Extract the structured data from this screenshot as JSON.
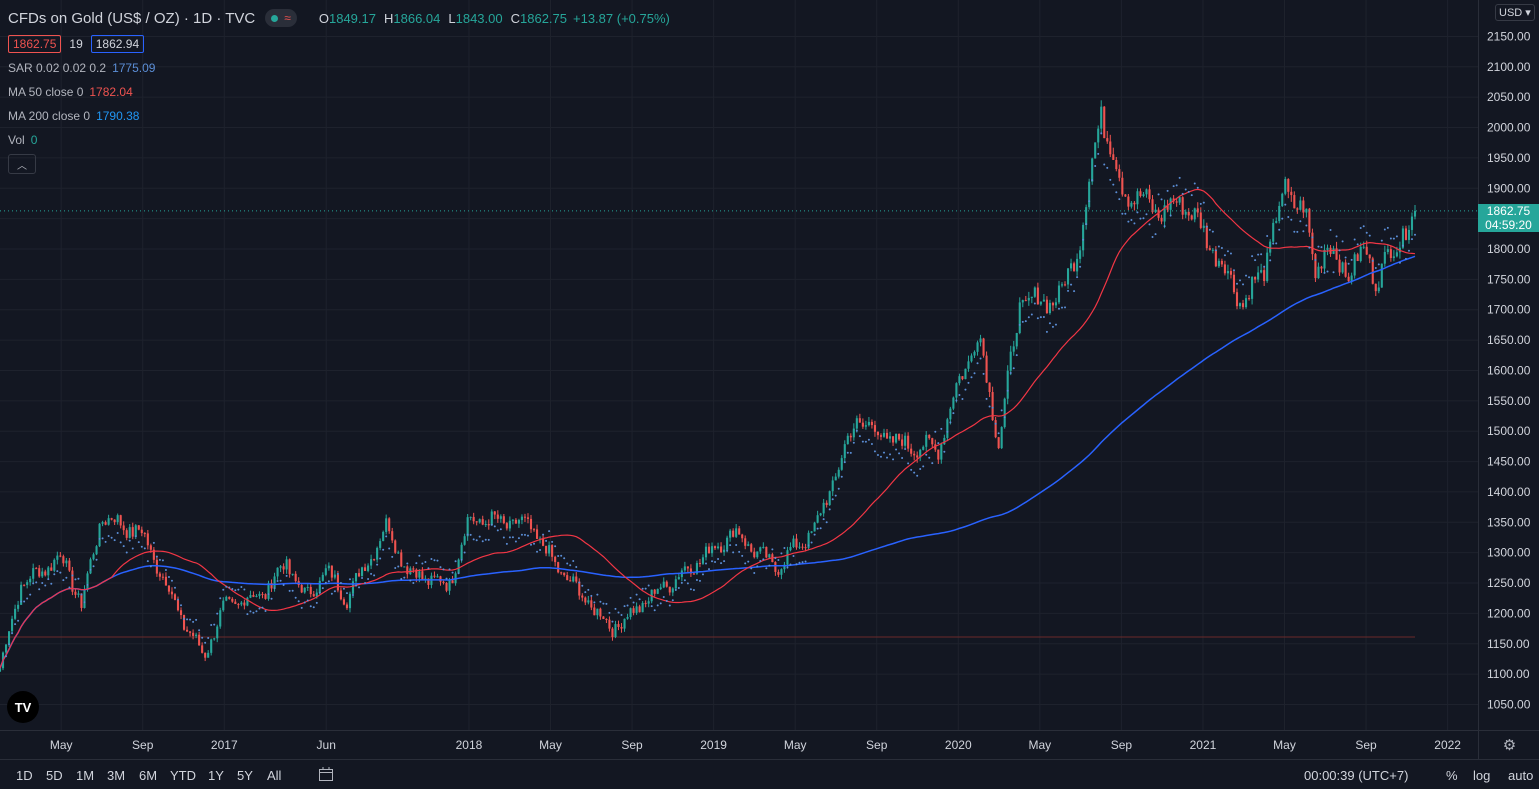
{
  "header": {
    "title": "CFDs on Gold (US$ / OZ) · 1D · TVC",
    "ohlc": [
      {
        "k": "O",
        "v": "1849.17"
      },
      {
        "k": "H",
        "v": "1866.04"
      },
      {
        "k": "L",
        "v": "1843.00"
      },
      {
        "k": "C",
        "v": "1862.75"
      }
    ],
    "change": "+13.87 (+0.75%)",
    "sell_price": "1862.75",
    "spread": "19",
    "buy_price": "1862.94",
    "indicators": [
      {
        "name": "SAR 0.02 0.02 0.2",
        "value": "1775.09",
        "color": "#5b8ed6"
      },
      {
        "name": "MA 50 close 0",
        "value": "1782.04",
        "color": "#ef5350"
      },
      {
        "name": "MA 200 close 0",
        "value": "1790.38",
        "color": "#2196f3"
      },
      {
        "name": "Vol",
        "value": "0",
        "color": "#26a69a"
      }
    ]
  },
  "price_scale": {
    "currency": "USD",
    "last_price": "1862.75",
    "countdown": "04:59:20"
  },
  "colors": {
    "up": "#26a69a",
    "down": "#ef5350",
    "ma50": "#f23645",
    "ma200": "#2962ff",
    "sar": "#5b8ed6",
    "grid": "#1e222d",
    "background": "#131722"
  },
  "bottom_bar": {
    "ranges": [
      "1D",
      "5D",
      "1M",
      "3M",
      "6M",
      "YTD",
      "1Y",
      "5Y",
      "All"
    ],
    "clock": "00:00:39 (UTC+7)",
    "percent": "%",
    "log": "log",
    "auto": "auto"
  },
  "chart_data": {
    "type": "candlestick",
    "x_ticks": [
      "May",
      "Sep",
      "2017",
      "Jun",
      "2018",
      "May",
      "Sep",
      "2019",
      "May",
      "Sep",
      "2020",
      "May",
      "Sep",
      "2021",
      "May",
      "Sep",
      "2022"
    ],
    "y_ticks": [
      1050,
      1100,
      1150,
      1200,
      1250,
      1300,
      1350,
      1400,
      1450,
      1500,
      1550,
      1600,
      1650,
      1700,
      1750,
      1800,
      1850,
      1900,
      1950,
      2000,
      2050,
      2100,
      2150
    ],
    "ylim": [
      1008,
      2210
    ],
    "last_price": 1862.75,
    "anchors": [
      {
        "date": "2016-02",
        "close": 1110
      },
      {
        "date": "2016-03",
        "close": 1245
      },
      {
        "date": "2016-05",
        "close": 1295
      },
      {
        "date": "2016-06",
        "close": 1215
      },
      {
        "date": "2016-07",
        "close": 1360
      },
      {
        "date": "2016-09",
        "close": 1330
      },
      {
        "date": "2016-10",
        "close": 1260
      },
      {
        "date": "2016-11",
        "close": 1185
      },
      {
        "date": "2016-12",
        "close": 1130
      },
      {
        "date": "2017-01",
        "close": 1210
      },
      {
        "date": "2017-03",
        "close": 1235
      },
      {
        "date": "2017-04",
        "close": 1285
      },
      {
        "date": "2017-05",
        "close": 1225
      },
      {
        "date": "2017-06",
        "close": 1270
      },
      {
        "date": "2017-07",
        "close": 1225
      },
      {
        "date": "2017-09",
        "close": 1345
      },
      {
        "date": "2017-10",
        "close": 1270
      },
      {
        "date": "2017-12",
        "close": 1245
      },
      {
        "date": "2018-01",
        "close": 1355
      },
      {
        "date": "2018-04",
        "close": 1345
      },
      {
        "date": "2018-05",
        "close": 1290
      },
      {
        "date": "2018-06",
        "close": 1250
      },
      {
        "date": "2018-08",
        "close": 1175
      },
      {
        "date": "2018-09",
        "close": 1200
      },
      {
        "date": "2018-10",
        "close": 1230
      },
      {
        "date": "2018-12",
        "close": 1280
      },
      {
        "date": "2019-02",
        "close": 1335
      },
      {
        "date": "2019-04",
        "close": 1275
      },
      {
        "date": "2019-06",
        "close": 1340
      },
      {
        "date": "2019-08",
        "close": 1520
      },
      {
        "date": "2019-09",
        "close": 1500
      },
      {
        "date": "2019-10",
        "close": 1480
      },
      {
        "date": "2019-12",
        "close": 1470
      },
      {
        "date": "2020-01",
        "close": 1580
      },
      {
        "date": "2020-02",
        "close": 1660
      },
      {
        "date": "2020-03",
        "close": 1480
      },
      {
        "date": "2020-04",
        "close": 1710
      },
      {
        "date": "2020-06",
        "close": 1720
      },
      {
        "date": "2020-07",
        "close": 1820
      },
      {
        "date": "2020-08",
        "close": 2030
      },
      {
        "date": "2020-09",
        "close": 1900
      },
      {
        "date": "2020-11",
        "close": 1860
      },
      {
        "date": "2020-12",
        "close": 1880
      },
      {
        "date": "2021-01",
        "close": 1830
      },
      {
        "date": "2021-02",
        "close": 1770
      },
      {
        "date": "2021-03",
        "close": 1710
      },
      {
        "date": "2021-04",
        "close": 1770
      },
      {
        "date": "2021-05",
        "close": 1900
      },
      {
        "date": "2021-06",
        "close": 1860
      },
      {
        "date": "2021-06",
        "close": 1760
      },
      {
        "date": "2021-07",
        "close": 1810
      },
      {
        "date": "2021-08",
        "close": 1760
      },
      {
        "date": "2021-09",
        "close": 1795
      },
      {
        "date": "2021-09",
        "close": 1750
      },
      {
        "date": "2021-10",
        "close": 1780
      },
      {
        "date": "2021-11",
        "close": 1862.75
      }
    ]
  }
}
